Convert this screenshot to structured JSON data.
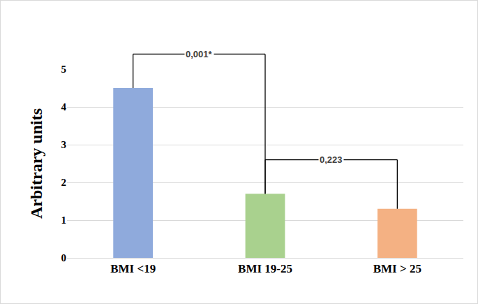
{
  "chart_data": {
    "type": "bar",
    "y_label": "Arbitrary units",
    "categories": [
      "BMI <19",
      "BMI 19-25",
      "BMI > 25"
    ],
    "values": [
      4.5,
      1.7,
      1.3
    ],
    "colors": [
      "#8faadc",
      "#a9d18e",
      "#f4b183"
    ],
    "ylim": [
      0,
      5
    ],
    "yticks": [
      0,
      1,
      2,
      3,
      4,
      5
    ],
    "grid": true,
    "annotations": [
      {
        "text": "0,001*",
        "from": "BMI <19",
        "to": "BMI 19-25"
      },
      {
        "text": "0,223",
        "from": "BMI 19-25",
        "to": "BMI > 25"
      }
    ]
  }
}
